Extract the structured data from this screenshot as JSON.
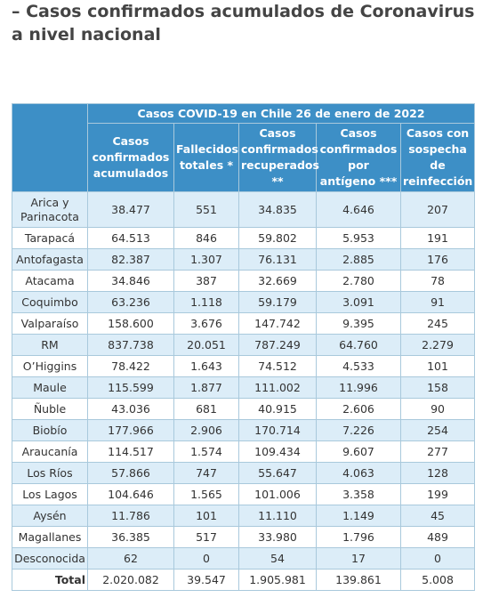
{
  "header": {
    "title": "– Casos confirmados acumulados de Coronavirus a nivel nacional"
  },
  "table": {
    "caption": "Casos COVID-19 en Chile 26 de enero de 2022",
    "columns": [
      "Casos confirmados acumulados",
      "Fallecidos totales *",
      "Casos confirmados recuperados **",
      "Casos confirmados por antígeno ***",
      "Casos con sospecha de reinfección"
    ],
    "rows": [
      [
        "Arica y Parinacota",
        "38.477",
        "551",
        "34.835",
        "4.646",
        "207"
      ],
      [
        "Tarapacá",
        "64.513",
        "846",
        "59.802",
        "5.953",
        "191"
      ],
      [
        "Antofagasta",
        "82.387",
        "1.307",
        "76.131",
        "2.885",
        "176"
      ],
      [
        "Atacama",
        "34.846",
        "387",
        "32.669",
        "2.780",
        "78"
      ],
      [
        "Coquimbo",
        "63.236",
        "1.118",
        "59.179",
        "3.091",
        "91"
      ],
      [
        "Valparaíso",
        "158.600",
        "3.676",
        "147.742",
        "9.395",
        "245"
      ],
      [
        "RM",
        "837.738",
        "20.051",
        "787.249",
        "64.760",
        "2.279"
      ],
      [
        "O’Higgins",
        "78.422",
        "1.643",
        "74.512",
        "4.533",
        "101"
      ],
      [
        "Maule",
        "115.599",
        "1.877",
        "111.002",
        "11.996",
        "158"
      ],
      [
        "Ñuble",
        "43.036",
        "681",
        "40.915",
        "2.606",
        "90"
      ],
      [
        "Biobío",
        "177.966",
        "2.906",
        "170.714",
        "7.226",
        "254"
      ],
      [
        "Araucanía",
        "114.517",
        "1.574",
        "109.434",
        "9.607",
        "277"
      ],
      [
        "Los Ríos",
        "57.866",
        "747",
        "55.647",
        "4.063",
        "128"
      ],
      [
        "Los Lagos",
        "104.646",
        "1.565",
        "101.006",
        "3.358",
        "199"
      ],
      [
        "Aysén",
        "11.786",
        "101",
        "11.110",
        "1.149",
        "45"
      ],
      [
        "Magallanes",
        "36.385",
        "517",
        "33.980",
        "1.796",
        "489"
      ],
      [
        "Desconocida",
        "62",
        "0",
        "54",
        "17",
        "0"
      ]
    ],
    "total": [
      "Total",
      "2.020.082",
      "39.547",
      "1.905.981",
      "139.861",
      "5.008"
    ]
  }
}
